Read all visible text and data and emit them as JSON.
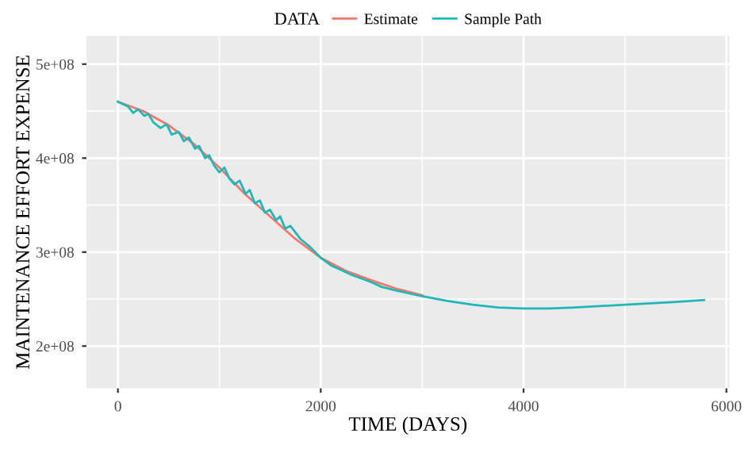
{
  "chart_data": {
    "type": "line",
    "xlabel": "TIME (DAYS)",
    "ylabel": "MAINTENANCE EFFORT EXPENSE",
    "legend_title": "DATA",
    "legend": "top",
    "grid": true,
    "xlim": [
      -310,
      6030
    ],
    "ylim": [
      155000000,
      530000000
    ],
    "xticks": [
      0,
      2000,
      4000,
      6000
    ],
    "yticks": [
      {
        "value": 200000000,
        "label": "2e+08"
      },
      {
        "value": 300000000,
        "label": "3e+08"
      },
      {
        "value": 400000000,
        "label": "4e+08"
      },
      {
        "value": 500000000,
        "label": "5e+08"
      }
    ],
    "series": [
      {
        "name": "Estimate",
        "color": "#f8766d",
        "x": [
          0,
          250,
          500,
          750,
          1000,
          1250,
          1500,
          1750,
          2000,
          2250,
          2500,
          2750,
          3000
        ],
        "values": [
          460000000,
          450000000,
          435000000,
          415000000,
          390000000,
          362000000,
          338000000,
          314000000,
          294000000,
          280000000,
          270000000,
          261000000,
          254000000
        ]
      },
      {
        "name": "Sample Path",
        "color": "#1fb8b8",
        "x": [
          0,
          100,
          150,
          200,
          260,
          300,
          350,
          420,
          480,
          530,
          600,
          650,
          700,
          760,
          800,
          860,
          900,
          950,
          1000,
          1050,
          1100,
          1150,
          1200,
          1260,
          1300,
          1350,
          1400,
          1450,
          1500,
          1560,
          1600,
          1650,
          1700,
          1800,
          1900,
          2000,
          2100,
          2200,
          2300,
          2400,
          2500,
          2600,
          2750,
          3000,
          3250,
          3500,
          3750,
          4000,
          4250,
          4500,
          5000,
          5500,
          5780
        ],
        "values": [
          460000000,
          455000000,
          448000000,
          452000000,
          445000000,
          447000000,
          438000000,
          432000000,
          436000000,
          425000000,
          428000000,
          418000000,
          422000000,
          410000000,
          413000000,
          400000000,
          403000000,
          392000000,
          385000000,
          390000000,
          378000000,
          372000000,
          376000000,
          362000000,
          366000000,
          352000000,
          355000000,
          342000000,
          345000000,
          334000000,
          338000000,
          325000000,
          328000000,
          314000000,
          305000000,
          294000000,
          286000000,
          281000000,
          276000000,
          272000000,
          268000000,
          263000000,
          259000000,
          253000000,
          248000000,
          244000000,
          241000000,
          240000000,
          240000000,
          241000000,
          244000000,
          247000000,
          249000000
        ]
      }
    ]
  }
}
